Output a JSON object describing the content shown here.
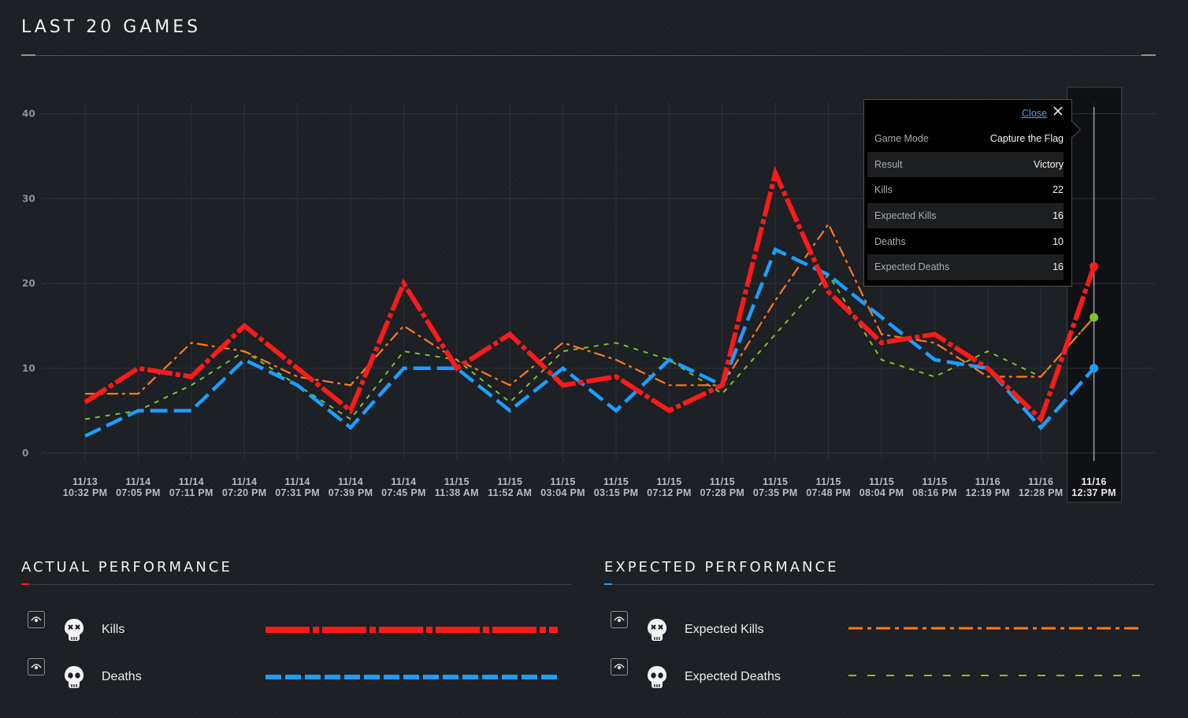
{
  "header": {
    "title": "LAST 20 GAMES"
  },
  "chart_data": {
    "type": "line",
    "title": "LAST 20 GAMES",
    "categories": [
      [
        "11/13",
        "10:32 PM"
      ],
      [
        "11/14",
        "07:05 PM"
      ],
      [
        "11/14",
        "07:11 PM"
      ],
      [
        "11/14",
        "07:20 PM"
      ],
      [
        "11/14",
        "07:31 PM"
      ],
      [
        "11/14",
        "07:39 PM"
      ],
      [
        "11/14",
        "07:45 PM"
      ],
      [
        "11/15",
        "11:38 AM"
      ],
      [
        "11/15",
        "11:52 AM"
      ],
      [
        "11/15",
        "03:04 PM"
      ],
      [
        "11/15",
        "03:15 PM"
      ],
      [
        "11/15",
        "07:12 PM"
      ],
      [
        "11/15",
        "07:28 PM"
      ],
      [
        "11/15",
        "07:35 PM"
      ],
      [
        "11/15",
        "07:48 PM"
      ],
      [
        "11/15",
        "08:04 PM"
      ],
      [
        "11/15",
        "08:16 PM"
      ],
      [
        "11/16",
        "12:19 PM"
      ],
      [
        "11/16",
        "12:28 PM"
      ],
      [
        "11/16",
        "12:37 PM"
      ]
    ],
    "yticks": [
      "0",
      "10",
      "20",
      "30",
      "40"
    ],
    "ylim": [
      0,
      40
    ],
    "grid": true,
    "selected_index": 19,
    "series": [
      {
        "name": "Kills",
        "color": "#ff1a1a",
        "values": [
          6,
          10,
          9,
          15,
          10,
          5,
          20,
          10,
          14,
          8,
          9,
          5,
          8,
          33,
          19,
          13,
          14,
          10,
          4,
          22
        ]
      },
      {
        "name": "Deaths",
        "color": "#1a9fff",
        "values": [
          2,
          5,
          5,
          11,
          8,
          3,
          10,
          10,
          5,
          10,
          5,
          11,
          8,
          24,
          21,
          16,
          11,
          10,
          3,
          10
        ]
      },
      {
        "name": "Expected Kills",
        "color": "#ff7a1a",
        "values": [
          7,
          7,
          13,
          12,
          9,
          8,
          15,
          11,
          8,
          13,
          11,
          8,
          8,
          18,
          27,
          14,
          13,
          9,
          9,
          16
        ]
      },
      {
        "name": "Expected Deaths",
        "color": "#7cc42a",
        "values": [
          4,
          5,
          8,
          12,
          8,
          4,
          12,
          11,
          6,
          12,
          13,
          11,
          7,
          14,
          21,
          11,
          9,
          12,
          9,
          16
        ]
      }
    ]
  },
  "tooltip": {
    "close_label": "Close",
    "rows": [
      {
        "key": "Game Mode",
        "value": "Capture the Flag"
      },
      {
        "key": "Result",
        "value": "Victory"
      },
      {
        "key": "Kills",
        "value": "22"
      },
      {
        "key": "Expected Kills",
        "value": "16"
      },
      {
        "key": "Deaths",
        "value": "10"
      },
      {
        "key": "Expected Deaths",
        "value": "16"
      }
    ]
  },
  "legend": {
    "actual": {
      "title": "ACTUAL PERFORMANCE",
      "accent": "#ff1a1a",
      "items": [
        {
          "label": "Kills",
          "icon": "skull-x-icon"
        },
        {
          "label": "Deaths",
          "icon": "skull-icon"
        }
      ]
    },
    "expected": {
      "title": "EXPECTED PERFORMANCE",
      "accent": "#1a9fff",
      "items": [
        {
          "label": "Expected Kills",
          "icon": "skull-x-icon"
        },
        {
          "label": "Expected Deaths",
          "icon": "skull-icon"
        }
      ]
    }
  }
}
